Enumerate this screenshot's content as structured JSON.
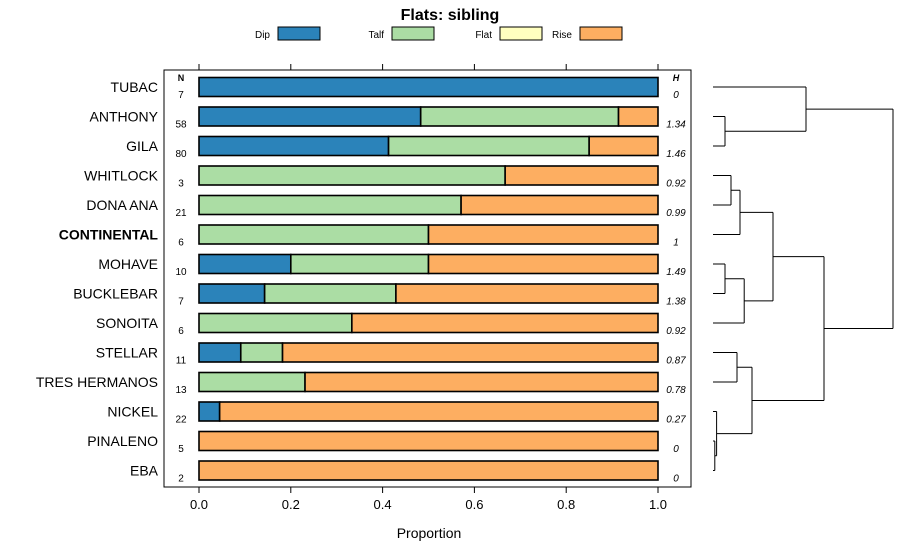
{
  "chart_data": {
    "type": "bar",
    "stacked": true,
    "orientation": "horizontal",
    "title": "Flats: sibling",
    "xlabel": "Proportion",
    "xlim": [
      0,
      1
    ],
    "xticks": [
      "0.0",
      "0.2",
      "0.4",
      "0.6",
      "0.8",
      "1.0"
    ],
    "n_header": "N",
    "h_header": "H",
    "legend_position": "top",
    "legend": [
      {
        "name": "Dip",
        "color": "#2b83ba"
      },
      {
        "name": "Talf",
        "color": "#abdda4"
      },
      {
        "name": "Flat",
        "color": "#ffffbf"
      },
      {
        "name": "Rise",
        "color": "#fdae61"
      }
    ],
    "rows": [
      {
        "label": "TUBAC",
        "bold": false,
        "n": "7",
        "h": "0",
        "values": [
          1.0,
          0.0,
          0.0,
          0.0
        ]
      },
      {
        "label": "ANTHONY",
        "bold": false,
        "n": "58",
        "h": "1.34",
        "values": [
          0.483,
          0.431,
          0.0,
          0.086
        ]
      },
      {
        "label": "GILA",
        "bold": false,
        "n": "80",
        "h": "1.46",
        "values": [
          0.413,
          0.437,
          0.0,
          0.15
        ]
      },
      {
        "label": "WHITLOCK",
        "bold": false,
        "n": "3",
        "h": "0.92",
        "values": [
          0.0,
          0.667,
          0.0,
          0.333
        ]
      },
      {
        "label": "DONA ANA",
        "bold": false,
        "n": "21",
        "h": "0.99",
        "values": [
          0.0,
          0.571,
          0.0,
          0.429
        ]
      },
      {
        "label": "CONTINENTAL",
        "bold": true,
        "n": "6",
        "h": "1",
        "values": [
          0.0,
          0.5,
          0.0,
          0.5
        ]
      },
      {
        "label": "MOHAVE",
        "bold": false,
        "n": "10",
        "h": "1.49",
        "values": [
          0.2,
          0.3,
          0.0,
          0.5
        ]
      },
      {
        "label": "BUCKLEBAR",
        "bold": false,
        "n": "7",
        "h": "1.38",
        "values": [
          0.143,
          0.286,
          0.0,
          0.571
        ]
      },
      {
        "label": "SONOITA",
        "bold": false,
        "n": "6",
        "h": "0.92",
        "values": [
          0.0,
          0.333,
          0.0,
          0.667
        ]
      },
      {
        "label": "STELLAR",
        "bold": false,
        "n": "11",
        "h": "0.87",
        "values": [
          0.091,
          0.091,
          0.0,
          0.818
        ]
      },
      {
        "label": "TRES HERMANOS",
        "bold": false,
        "n": "13",
        "h": "0.78",
        "values": [
          0.0,
          0.231,
          0.0,
          0.769
        ]
      },
      {
        "label": "NICKEL",
        "bold": false,
        "n": "22",
        "h": "0.27",
        "values": [
          0.045,
          0.0,
          0.0,
          0.955
        ]
      },
      {
        "label": "PINALENO",
        "bold": false,
        "n": "5",
        "h": "0",
        "values": [
          0.0,
          0.0,
          0.0,
          1.0
        ]
      },
      {
        "label": "EBA",
        "bold": false,
        "n": "2",
        "h": "0",
        "values": [
          0.0,
          0.0,
          0.0,
          1.0
        ]
      }
    ],
    "dendrogram": {
      "merges": [
        [
          12,
          13,
          0.03
        ],
        [
          1,
          2,
          0.2
        ],
        [
          3,
          4,
          0.3
        ],
        [
          6,
          7,
          0.2
        ],
        [
          9,
          10,
          0.4
        ],
        [
          -1,
          11,
          0.06
        ],
        [
          -3,
          5,
          0.45
        ],
        [
          -4,
          8,
          0.52
        ],
        [
          0,
          -2,
          1.55
        ],
        [
          -7,
          -8,
          1.0
        ],
        [
          -5,
          -6,
          0.65
        ],
        [
          -10,
          -11,
          1.85
        ],
        [
          -9,
          -12,
          3.0
        ]
      ]
    }
  }
}
